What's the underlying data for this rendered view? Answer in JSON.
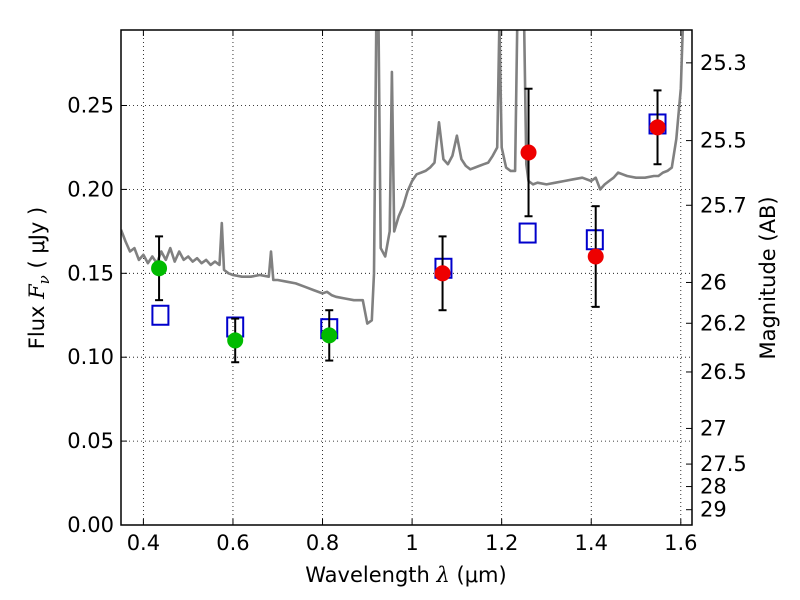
{
  "chart_data": {
    "type": "scatter",
    "xlabel": {
      "prefix": "Wavelength  ",
      "math": "λ",
      "suffix": " (μm)"
    },
    "ylabel": {
      "prefix": "Flux  ",
      "math": "F",
      "sub": "ν",
      "suffix": "  ( μJy )"
    },
    "y2label": "Magnitude (AB)",
    "xlim": [
      0.35,
      1.625
    ],
    "ylim": [
      0.0,
      0.295
    ],
    "x_ticks": [
      0.4,
      0.6,
      0.8,
      1.0,
      1.2,
      1.4,
      1.6
    ],
    "x_tick_labels": [
      "0.4",
      "0.6",
      "0.8",
      "1",
      "1.2",
      "1.4",
      "1.6"
    ],
    "y_ticks": [
      0.0,
      0.05,
      0.1,
      0.15,
      0.2,
      0.25
    ],
    "y_tick_labels": [
      "0.00",
      "0.05",
      "0.10",
      "0.15",
      "0.20",
      "0.25"
    ],
    "y2_ticks": [
      {
        "label": "25.3",
        "mag": 25.3
      },
      {
        "label": "25.5",
        "mag": 25.5
      },
      {
        "label": "25.7",
        "mag": 25.7
      },
      {
        "label": "26",
        "mag": 26.0
      },
      {
        "label": "26.2",
        "mag": 26.2
      },
      {
        "label": "26.5",
        "mag": 26.5
      },
      {
        "label": "27",
        "mag": 27.0
      },
      {
        "label": "27.5",
        "mag": 27.5
      },
      {
        "label": "28",
        "mag": 28.0
      },
      {
        "label": "29",
        "mag": 29.0
      }
    ],
    "grid": true,
    "grid_style": "dotted",
    "series": [
      {
        "kind": "line",
        "color": "#808080",
        "points": [
          [
            0.35,
            0.176
          ],
          [
            0.36,
            0.169
          ],
          [
            0.37,
            0.163
          ],
          [
            0.38,
            0.165
          ],
          [
            0.39,
            0.158
          ],
          [
            0.4,
            0.161
          ],
          [
            0.41,
            0.156
          ],
          [
            0.42,
            0.16
          ],
          [
            0.43,
            0.156
          ],
          [
            0.44,
            0.163
          ],
          [
            0.45,
            0.158
          ],
          [
            0.46,
            0.165
          ],
          [
            0.47,
            0.157
          ],
          [
            0.48,
            0.163
          ],
          [
            0.49,
            0.158
          ],
          [
            0.5,
            0.16
          ],
          [
            0.51,
            0.157
          ],
          [
            0.52,
            0.159
          ],
          [
            0.53,
            0.156
          ],
          [
            0.54,
            0.158
          ],
          [
            0.55,
            0.155
          ],
          [
            0.56,
            0.157
          ],
          [
            0.57,
            0.155
          ],
          [
            0.575,
            0.18
          ],
          [
            0.58,
            0.152
          ],
          [
            0.59,
            0.15
          ],
          [
            0.6,
            0.149
          ],
          [
            0.62,
            0.148
          ],
          [
            0.64,
            0.148
          ],
          [
            0.66,
            0.149
          ],
          [
            0.68,
            0.148
          ],
          [
            0.685,
            0.163
          ],
          [
            0.69,
            0.146
          ],
          [
            0.7,
            0.146
          ],
          [
            0.72,
            0.145
          ],
          [
            0.74,
            0.144
          ],
          [
            0.76,
            0.142
          ],
          [
            0.78,
            0.14
          ],
          [
            0.8,
            0.138
          ],
          [
            0.81,
            0.139
          ],
          [
            0.82,
            0.137
          ],
          [
            0.83,
            0.136
          ],
          [
            0.85,
            0.135
          ],
          [
            0.87,
            0.134
          ],
          [
            0.89,
            0.134
          ],
          [
            0.9,
            0.12
          ],
          [
            0.91,
            0.122
          ],
          [
            0.915,
            0.15
          ],
          [
            0.92,
            0.3
          ],
          [
            0.925,
            0.3
          ],
          [
            0.93,
            0.165
          ],
          [
            0.94,
            0.16
          ],
          [
            0.95,
            0.175
          ],
          [
            0.955,
            0.27
          ],
          [
            0.96,
            0.175
          ],
          [
            0.97,
            0.184
          ],
          [
            0.98,
            0.19
          ],
          [
            0.99,
            0.199
          ],
          [
            1.0,
            0.205
          ],
          [
            1.01,
            0.209
          ],
          [
            1.02,
            0.21
          ],
          [
            1.03,
            0.211
          ],
          [
            1.04,
            0.213
          ],
          [
            1.05,
            0.216
          ],
          [
            1.06,
            0.24
          ],
          [
            1.07,
            0.218
          ],
          [
            1.08,
            0.215
          ],
          [
            1.09,
            0.22
          ],
          [
            1.1,
            0.232
          ],
          [
            1.11,
            0.218
          ],
          [
            1.12,
            0.214
          ],
          [
            1.13,
            0.212
          ],
          [
            1.14,
            0.213
          ],
          [
            1.15,
            0.214
          ],
          [
            1.16,
            0.215
          ],
          [
            1.17,
            0.216
          ],
          [
            1.18,
            0.22
          ],
          [
            1.19,
            0.225
          ],
          [
            1.195,
            0.3
          ],
          [
            1.2,
            0.225
          ],
          [
            1.21,
            0.213
          ],
          [
            1.22,
            0.211
          ],
          [
            1.23,
            0.211
          ],
          [
            1.235,
            0.3
          ],
          [
            1.25,
            0.3
          ],
          [
            1.255,
            0.215
          ],
          [
            1.26,
            0.205
          ],
          [
            1.27,
            0.203
          ],
          [
            1.28,
            0.204
          ],
          [
            1.3,
            0.203
          ],
          [
            1.32,
            0.204
          ],
          [
            1.34,
            0.205
          ],
          [
            1.36,
            0.206
          ],
          [
            1.38,
            0.207
          ],
          [
            1.4,
            0.205
          ],
          [
            1.41,
            0.207
          ],
          [
            1.42,
            0.2
          ],
          [
            1.43,
            0.203
          ],
          [
            1.44,
            0.205
          ],
          [
            1.45,
            0.207
          ],
          [
            1.46,
            0.21
          ],
          [
            1.47,
            0.209
          ],
          [
            1.48,
            0.208
          ],
          [
            1.5,
            0.207
          ],
          [
            1.52,
            0.207
          ],
          [
            1.54,
            0.208
          ],
          [
            1.55,
            0.208
          ],
          [
            1.56,
            0.21
          ],
          [
            1.57,
            0.211
          ],
          [
            1.58,
            0.213
          ],
          [
            1.59,
            0.23
          ],
          [
            1.6,
            0.26
          ],
          [
            1.605,
            0.3
          ],
          [
            1.625,
            0.3
          ]
        ]
      },
      {
        "kind": "open-square",
        "color": "#0000cc",
        "points": [
          [
            0.438,
            0.125
          ],
          [
            0.605,
            0.118
          ],
          [
            0.815,
            0.117
          ],
          [
            1.07,
            0.153
          ],
          [
            1.258,
            0.174
          ],
          [
            1.408,
            0.17
          ],
          [
            1.548,
            0.239
          ]
        ]
      },
      {
        "kind": "filled-circle-errorbar",
        "color": "#00bb00",
        "points": [
          {
            "x": 0.435,
            "y": 0.153,
            "lo": 0.134,
            "hi": 0.172
          },
          {
            "x": 0.605,
            "y": 0.11,
            "lo": 0.097,
            "hi": 0.123
          },
          {
            "x": 0.815,
            "y": 0.113,
            "lo": 0.098,
            "hi": 0.128
          }
        ]
      },
      {
        "kind": "filled-circle-errorbar",
        "color": "#ee0000",
        "points": [
          {
            "x": 1.068,
            "y": 0.15,
            "lo": 0.128,
            "hi": 0.172
          },
          {
            "x": 1.26,
            "y": 0.222,
            "lo": 0.184,
            "hi": 0.26
          },
          {
            "x": 1.41,
            "y": 0.16,
            "lo": 0.13,
            "hi": 0.19
          },
          {
            "x": 1.548,
            "y": 0.237,
            "lo": 0.215,
            "hi": 0.259
          }
        ]
      }
    ]
  }
}
